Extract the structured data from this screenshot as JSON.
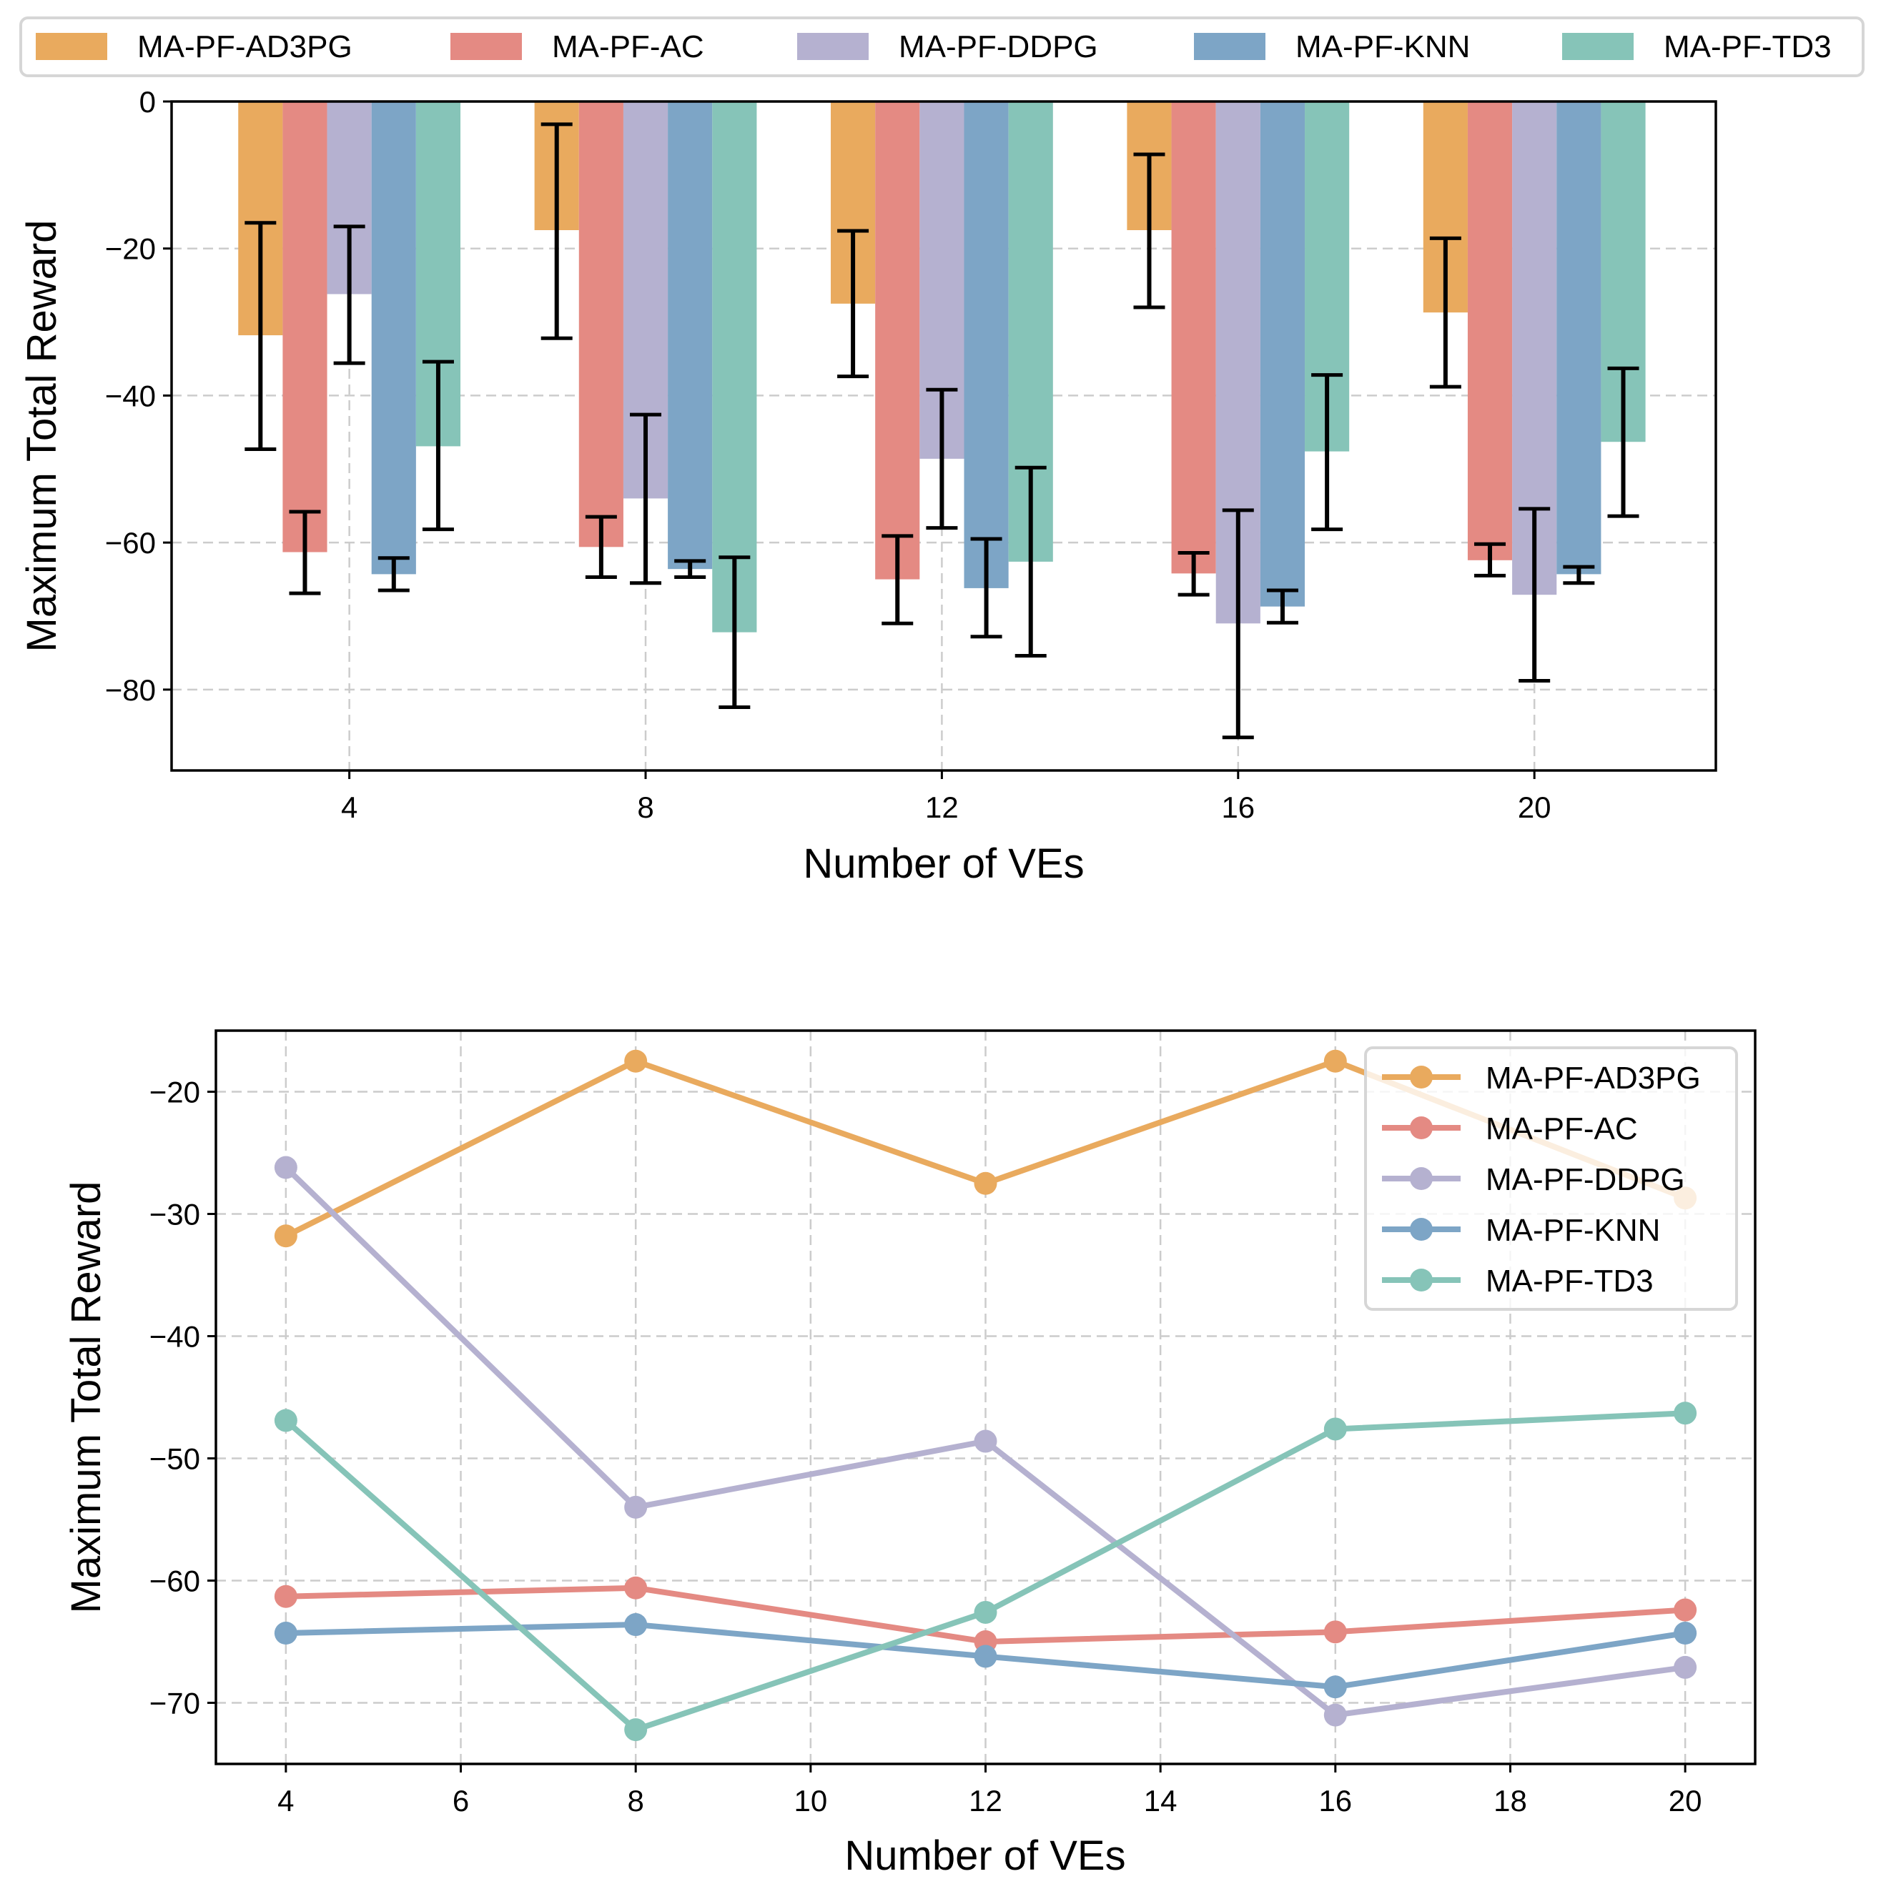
{
  "chart_data": [
    {
      "type": "bar",
      "title": "",
      "xlabel": "Number of VEs",
      "ylabel": "Maximum Total Reward",
      "categories": [
        "4",
        "8",
        "12",
        "16",
        "20"
      ],
      "x": [
        4,
        8,
        12,
        16,
        20
      ],
      "ylim": [
        -91,
        0
      ],
      "xlim": [
        1.6,
        22.45
      ],
      "yticks": [
        0,
        -20,
        -40,
        -60,
        -80
      ],
      "ytick_labels": [
        "0",
        "−20",
        "−40",
        "−60",
        "−80"
      ],
      "xtick_labels": [
        "4",
        "8",
        "12",
        "16",
        "20"
      ],
      "grid": true,
      "legend_position": "top (outside, single row)",
      "error_bars": true,
      "series": [
        {
          "name": "MA-PF-AD3PG",
          "color": "#E9AA5E",
          "values": [
            -31.8,
            -17.5,
            -27.5,
            -17.5,
            -28.7
          ],
          "err_low": [
            -47.3,
            -32.2,
            -37.4,
            -28.0,
            -38.8
          ],
          "err_high": [
            -16.5,
            -3.1,
            -17.6,
            -7.2,
            -18.6
          ]
        },
        {
          "name": "MA-PF-AC",
          "color": "#E48A83",
          "values": [
            -61.3,
            -60.6,
            -65.0,
            -64.2,
            -62.4
          ],
          "err_low": [
            -66.9,
            -64.7,
            -71.0,
            -67.1,
            -64.5
          ],
          "err_high": [
            -55.8,
            -56.5,
            -59.1,
            -61.4,
            -60.2
          ]
        },
        {
          "name": "MA-PF-DDPG",
          "color": "#B5B1D0",
          "values": [
            -26.2,
            -54.0,
            -48.6,
            -71.0,
            -67.1
          ],
          "err_low": [
            -35.6,
            -65.5,
            -58.0,
            -86.5,
            -78.8
          ],
          "err_high": [
            -17.0,
            -42.6,
            -39.2,
            -55.6,
            -55.4
          ]
        },
        {
          "name": "MA-PF-KNN",
          "color": "#7DA5C6",
          "values": [
            -64.3,
            -63.6,
            -66.2,
            -68.7,
            -64.3
          ],
          "err_low": [
            -66.5,
            -64.7,
            -72.8,
            -70.9,
            -65.5
          ],
          "err_high": [
            -62.1,
            -62.5,
            -59.5,
            -66.5,
            -63.3
          ]
        },
        {
          "name": "MA-PF-TD3",
          "color": "#86C4B8",
          "values": [
            -46.9,
            -72.2,
            -62.6,
            -47.6,
            -46.3
          ],
          "err_low": [
            -58.2,
            -82.4,
            -75.4,
            -58.2,
            -56.4
          ],
          "err_high": [
            -35.4,
            -62.0,
            -49.8,
            -37.2,
            -36.3
          ]
        }
      ]
    },
    {
      "type": "line",
      "title": "",
      "xlabel": "Number of VEs",
      "ylabel": "Maximum Total Reward",
      "x": [
        4,
        8,
        12,
        16,
        20
      ],
      "xlim": [
        3.2,
        20.8
      ],
      "ylim": [
        -75,
        -15
      ],
      "xticks": [
        4,
        6,
        8,
        10,
        12,
        14,
        16,
        18,
        20
      ],
      "xtick_labels": [
        "4",
        "6",
        "8",
        "10",
        "12",
        "14",
        "16",
        "18",
        "20"
      ],
      "yticks": [
        -20,
        -30,
        -40,
        -50,
        -60,
        -70
      ],
      "ytick_labels": [
        "−20",
        "−30",
        "−40",
        "−50",
        "−60",
        "−70"
      ],
      "grid": true,
      "legend_position": "top-right",
      "series": [
        {
          "name": "MA-PF-AD3PG",
          "color": "#E9AA5E",
          "values": [
            -31.8,
            -17.5,
            -27.5,
            -17.5,
            -28.7
          ]
        },
        {
          "name": "MA-PF-AC",
          "color": "#E48A83",
          "values": [
            -61.3,
            -60.6,
            -65.0,
            -64.2,
            -62.4
          ]
        },
        {
          "name": "MA-PF-DDPG",
          "color": "#B5B1D0",
          "values": [
            -26.2,
            -54.0,
            -48.6,
            -71.0,
            -67.1
          ]
        },
        {
          "name": "MA-PF-KNN",
          "color": "#7DA5C6",
          "values": [
            -64.3,
            -63.6,
            -66.2,
            -68.7,
            -64.3
          ]
        },
        {
          "name": "MA-PF-TD3",
          "color": "#86C4B8",
          "values": [
            -46.9,
            -72.2,
            -62.6,
            -47.6,
            -46.3
          ]
        }
      ]
    }
  ]
}
